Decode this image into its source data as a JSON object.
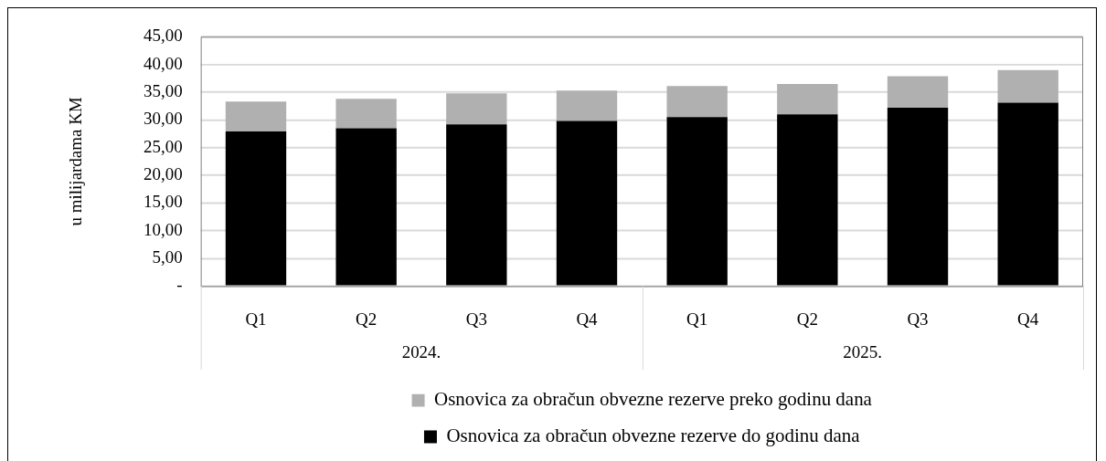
{
  "chart_data": {
    "type": "bar",
    "stacked": true,
    "ylabel": "u milijardama KM",
    "categories": [
      "Q1",
      "Q2",
      "Q3",
      "Q4",
      "Q1",
      "Q2",
      "Q3",
      "Q4"
    ],
    "annotations": [
      "2024.",
      "2025."
    ],
    "series": [
      {
        "name": "Osnovica za obračun obvezne rezerve do godinu dana",
        "color": "#000000",
        "values": [
          27.9,
          28.5,
          29.2,
          29.8,
          30.5,
          31.0,
          32.2,
          33.1
        ]
      },
      {
        "name": "Osnovica za obračun obvezne rezerve preko godinu dana",
        "color": "#b0b0b0",
        "values": [
          5.4,
          5.3,
          5.6,
          5.5,
          5.6,
          5.5,
          5.7,
          5.9
        ]
      }
    ],
    "ylim": [
      0,
      45
    ],
    "yticks": [
      {
        "value": 0,
        "label": "-"
      },
      {
        "value": 5,
        "label": "5,00"
      },
      {
        "value": 10,
        "label": "10,00"
      },
      {
        "value": 15,
        "label": "15,00"
      },
      {
        "value": 20,
        "label": "20,00"
      },
      {
        "value": 25,
        "label": "25,00"
      },
      {
        "value": 30,
        "label": "30,00"
      },
      {
        "value": 35,
        "label": "35,00"
      },
      {
        "value": 40,
        "label": "40,00"
      },
      {
        "value": 45,
        "label": "45,00"
      }
    ],
    "grid": "y",
    "legend": "bottom"
  }
}
